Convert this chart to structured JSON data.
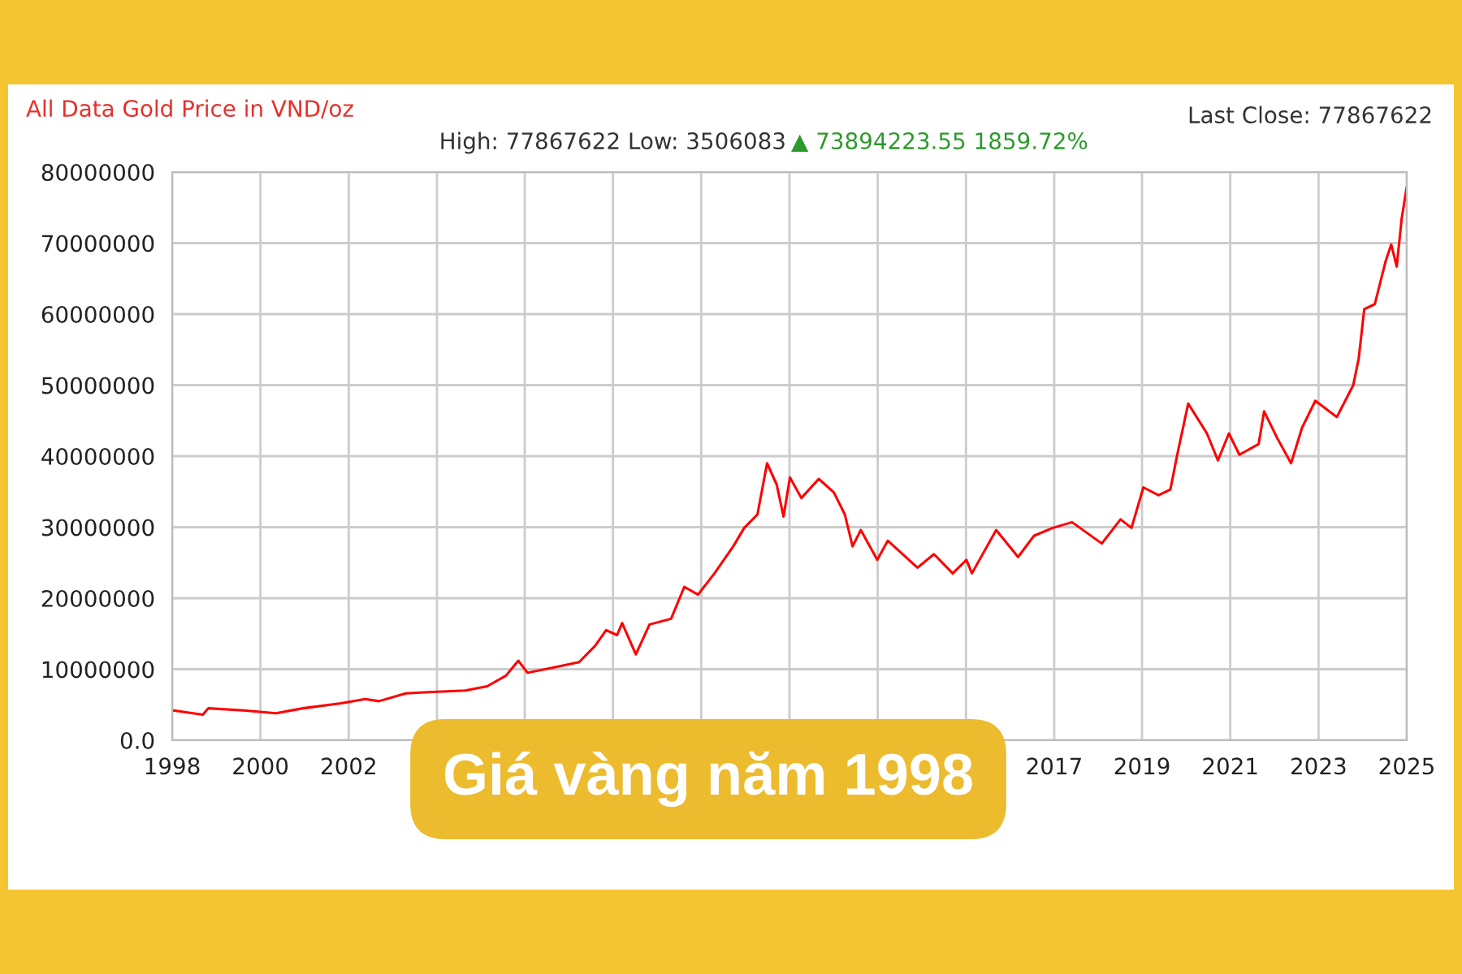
{
  "chart_data": {
    "type": "line",
    "title": "All Data Gold Price in VND/oz",
    "subtitle": "High: 77867622 Low: 3506083",
    "annotations": [
      "▲ 73894223.55 1859.72%",
      "Last Close: 77867622",
      "Giá vàng năm 1998"
    ],
    "xlim": [
      1998,
      2025
    ],
    "ylim": [
      0,
      80000000
    ],
    "xticks": [
      {
        "value": 1998,
        "label": "1998"
      },
      {
        "value": 1999.93,
        "label": "2000"
      },
      {
        "value": 2001.86,
        "label": "2002"
      },
      {
        "value": 2003.79,
        "label": null
      },
      {
        "value": 2005.71,
        "label": null
      },
      {
        "value": 2007.64,
        "label": null
      },
      {
        "value": 2009.57,
        "label": null
      },
      {
        "value": 2011.5,
        "label": null
      },
      {
        "value": 2013.43,
        "label": null
      },
      {
        "value": 2015.36,
        "label": null
      },
      {
        "value": 2017.29,
        "label": "2017"
      },
      {
        "value": 2019.21,
        "label": "2019"
      },
      {
        "value": 2021.14,
        "label": "2021"
      },
      {
        "value": 2023.07,
        "label": "2023"
      },
      {
        "value": 2025,
        "label": "2025"
      }
    ],
    "yticks": [
      {
        "value": 0,
        "label": "0.0"
      },
      10000000,
      20000000,
      30000000,
      40000000,
      50000000,
      60000000,
      70000000,
      80000000
    ],
    "grid": true,
    "x": [
      1998.02,
      1998.67,
      1998.79,
      1999.56,
      2000.27,
      2000.86,
      2001.69,
      2002.22,
      2002.52,
      2003.11,
      2003.7,
      2004.41,
      2004.89,
      2005.3,
      2005.57,
      2005.77,
      2006.31,
      2006.9,
      2007.25,
      2007.49,
      2007.73,
      2007.84,
      2008.14,
      2008.44,
      2008.91,
      2009.2,
      2009.5,
      2009.86,
      2010.27,
      2010.51,
      2010.8,
      2011.01,
      2011.22,
      2011.37,
      2011.51,
      2011.76,
      2012.14,
      2012.47,
      2012.71,
      2012.88,
      2013.06,
      2013.42,
      2013.65,
      2014.3,
      2014.66,
      2015.07,
      2015.37,
      2015.49,
      2016.02,
      2016.5,
      2016.85,
      2017.26,
      2017.68,
      2018.33,
      2018.74,
      2018.98,
      2019.24,
      2019.57,
      2019.83,
      2019.98,
      2020.22,
      2020.63,
      2020.87,
      2021.11,
      2021.34,
      2021.76,
      2021.88,
      2022.17,
      2022.47,
      2022.71,
      2023.0,
      2023.47,
      2023.83,
      2023.95,
      2024.07,
      2024.3,
      2024.54,
      2024.66,
      2024.78,
      2024.89,
      2025.0
    ],
    "series": [
      {
        "color": "#ff0000",
        "values": [
          4200000,
          3600000,
          4500000,
          4200000,
          3800000,
          4500000,
          5200000,
          5800000,
          5500000,
          6600000,
          6800000,
          7000000,
          7600000,
          9100000,
          11200000,
          9500000,
          10200000,
          11000000,
          13300000,
          15500000,
          14800000,
          16500000,
          12100000,
          16300000,
          17100000,
          21600000,
          20500000,
          23500000,
          27300000,
          29900000,
          31800000,
          39000000,
          36000000,
          31500000,
          37000000,
          34100000,
          36800000,
          34900000,
          31800000,
          27300000,
          29600000,
          25400000,
          28100000,
          24300000,
          26200000,
          23500000,
          25400000,
          23500000,
          29600000,
          25800000,
          28800000,
          29900000,
          30700000,
          27700000,
          31100000,
          29900000,
          35600000,
          34500000,
          35300000,
          40200000,
          47400000,
          43200000,
          39400000,
          43200000,
          40200000,
          41700000,
          46300000,
          42500000,
          39000000,
          44000000,
          47800000,
          45500000,
          50000000,
          53800000,
          60700000,
          61400000,
          67500000,
          69800000,
          66700000,
          73500000,
          77900000
        ]
      }
    ]
  }
}
